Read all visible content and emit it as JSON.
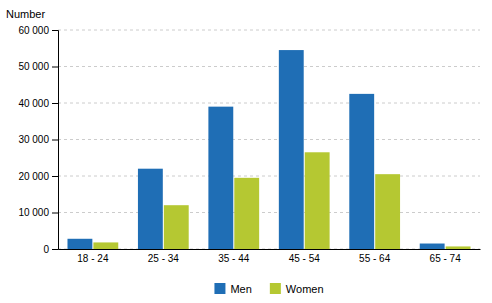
{
  "chart_data": {
    "type": "bar",
    "ylabel": "Number",
    "categories": [
      "18 - 24",
      "25 - 34",
      "35 - 44",
      "45 - 54",
      "55 - 64",
      "65 - 74"
    ],
    "series": [
      {
        "name": "Men",
        "color": "#1f6eb5",
        "values": [
          2800,
          22000,
          39000,
          54500,
          42500,
          1500
        ]
      },
      {
        "name": "Women",
        "color": "#b5c832",
        "values": [
          1800,
          12000,
          19500,
          26500,
          20500,
          700
        ]
      }
    ],
    "ylim": [
      0,
      60000
    ],
    "yticks": [
      0,
      {
        "value": 10000,
        "label": "10 000"
      },
      {
        "value": 20000,
        "label": "20 000"
      },
      {
        "value": 30000,
        "label": "30 000"
      },
      {
        "value": 40000,
        "label": "40 000"
      },
      {
        "value": 50000,
        "label": "50 000"
      },
      {
        "value": 60000,
        "label": "60 000"
      }
    ],
    "grid": true,
    "legend": "bottom"
  }
}
